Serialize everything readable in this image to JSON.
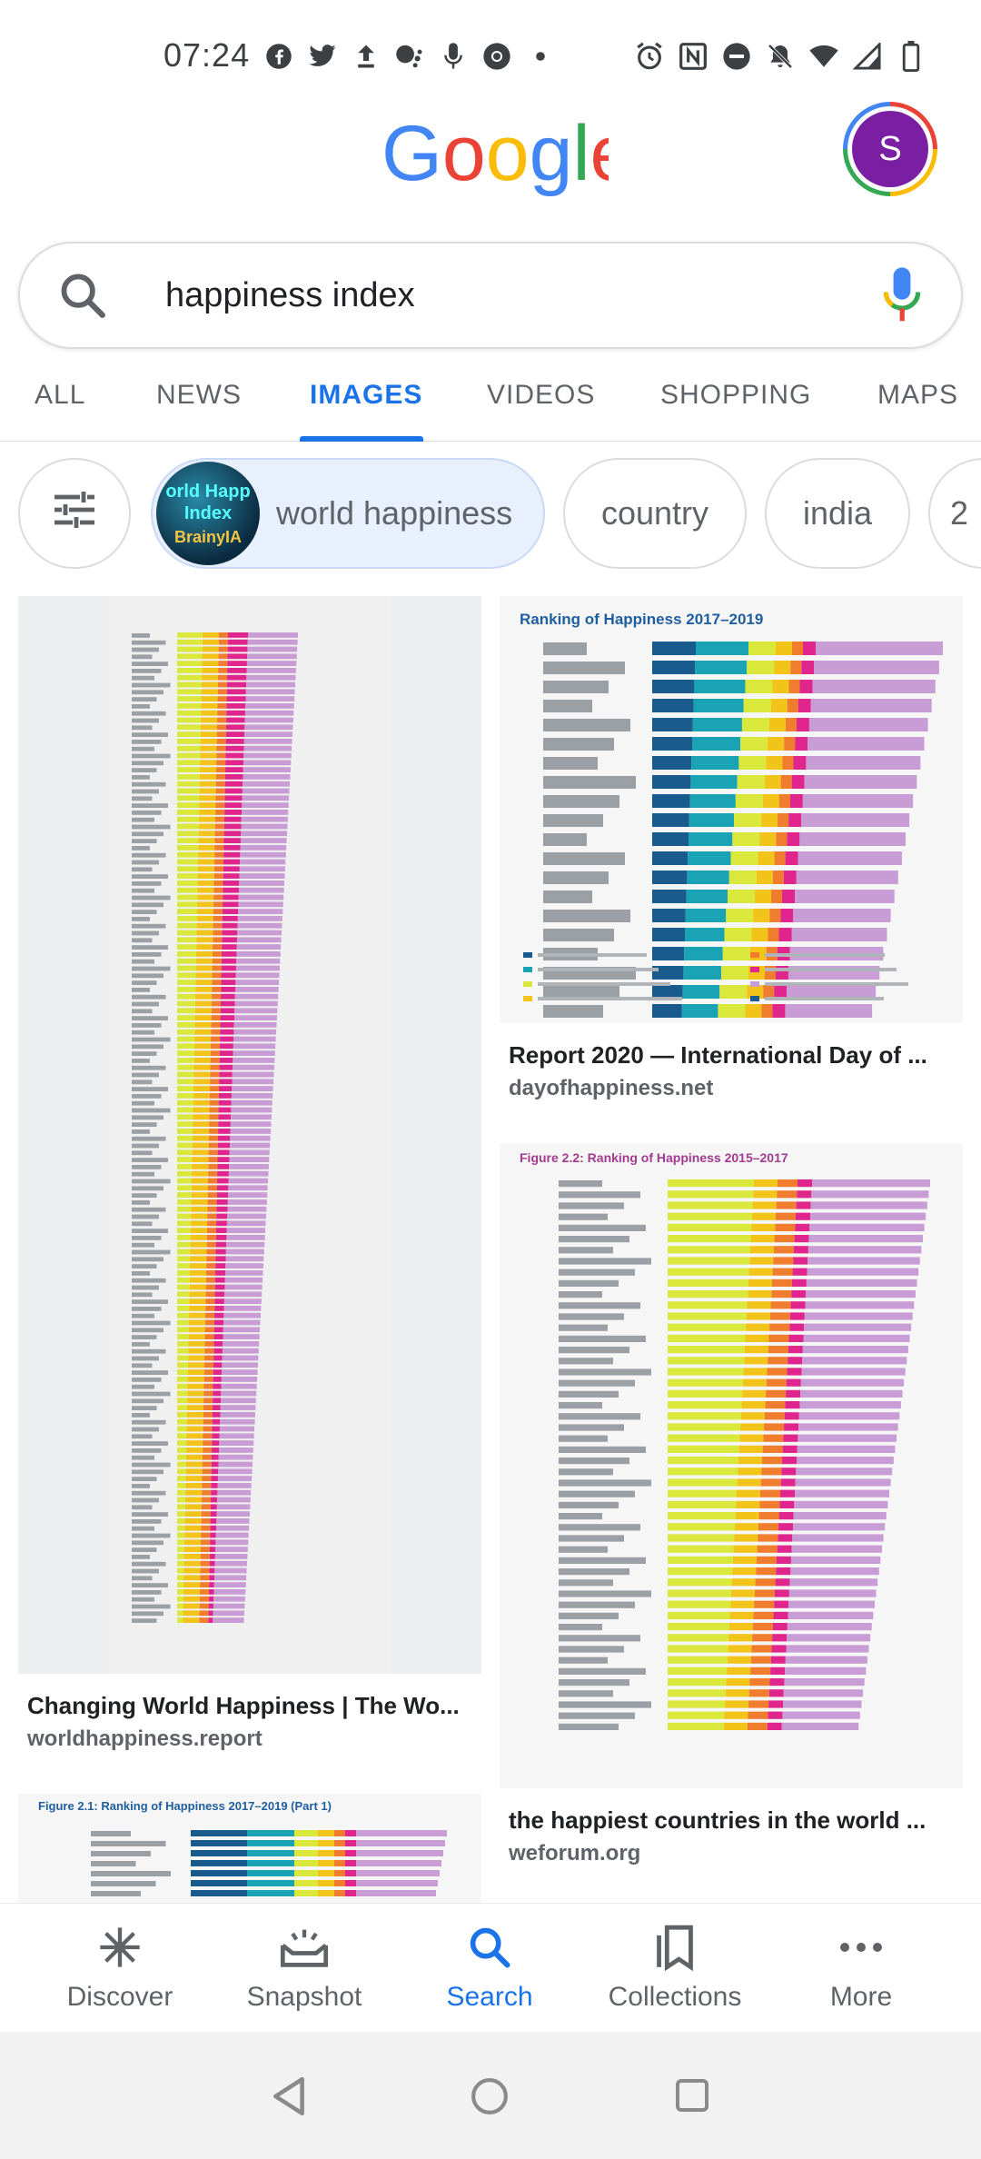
{
  "status": {
    "time": "07:24",
    "icons": [
      "facebook-icon",
      "twitter-icon",
      "upload-icon",
      "assistant-icon",
      "mic-icon",
      "chrome-icon",
      "dot-icon",
      "alarm-icon",
      "nfc-icon",
      "dnd-icon",
      "mute-icon",
      "wifi-icon",
      "signal-icon",
      "battery-icon"
    ]
  },
  "header": {
    "logo_text": "Google",
    "logo_colors": [
      "#4285f4",
      "#ea4335",
      "#fbbc05",
      "#4285f4",
      "#34a853",
      "#ea4335"
    ],
    "avatar_letter": "S",
    "avatar_color": "#7b1fa2"
  },
  "search": {
    "query": "happiness index"
  },
  "tabs": [
    {
      "label": "ALL"
    },
    {
      "label": "NEWS"
    },
    {
      "label": "IMAGES",
      "active": true
    },
    {
      "label": "VIDEOS"
    },
    {
      "label": "SHOPPING"
    },
    {
      "label": "MAPS"
    }
  ],
  "chips": [
    {
      "label": "world happiness",
      "thumb_text": "orld Happ Index",
      "thumb_sub": "BrainyIA",
      "selected": true
    },
    {
      "label": "country"
    },
    {
      "label": "india"
    },
    {
      "label": "2"
    }
  ],
  "results": [
    {
      "title": "Changing World Happiness | The Wo...",
      "source": "worldhappiness.report"
    },
    {
      "title": "Report 2020 — International Day of ...",
      "source": "dayofhappiness.net",
      "chart_heading": "Ranking of Happiness 2017–2019"
    },
    {
      "title": "the happiest countries in the world ...",
      "source": "weforum.org",
      "chart_heading": "Figure 2.2: Ranking of Happiness 2015–2017"
    },
    {
      "chart_heading": "Figure 2.1: Ranking of Happiness 2017–2019 (Part 1)"
    }
  ],
  "bar_colors": [
    "#1a5b8e",
    "#19a3b5",
    "#d9e83a",
    "#f2c318",
    "#f07c2e",
    "#e0268c",
    "#c89cd4"
  ],
  "bottom_nav": [
    {
      "label": "Discover",
      "icon": "asterisk-icon"
    },
    {
      "label": "Snapshot",
      "icon": "snapshot-icon"
    },
    {
      "label": "Search",
      "icon": "search-icon",
      "active": true
    },
    {
      "label": "Collections",
      "icon": "collections-icon"
    },
    {
      "label": "More",
      "icon": "more-icon"
    }
  ],
  "system_nav": [
    "back-icon",
    "home-icon",
    "recents-icon"
  ]
}
